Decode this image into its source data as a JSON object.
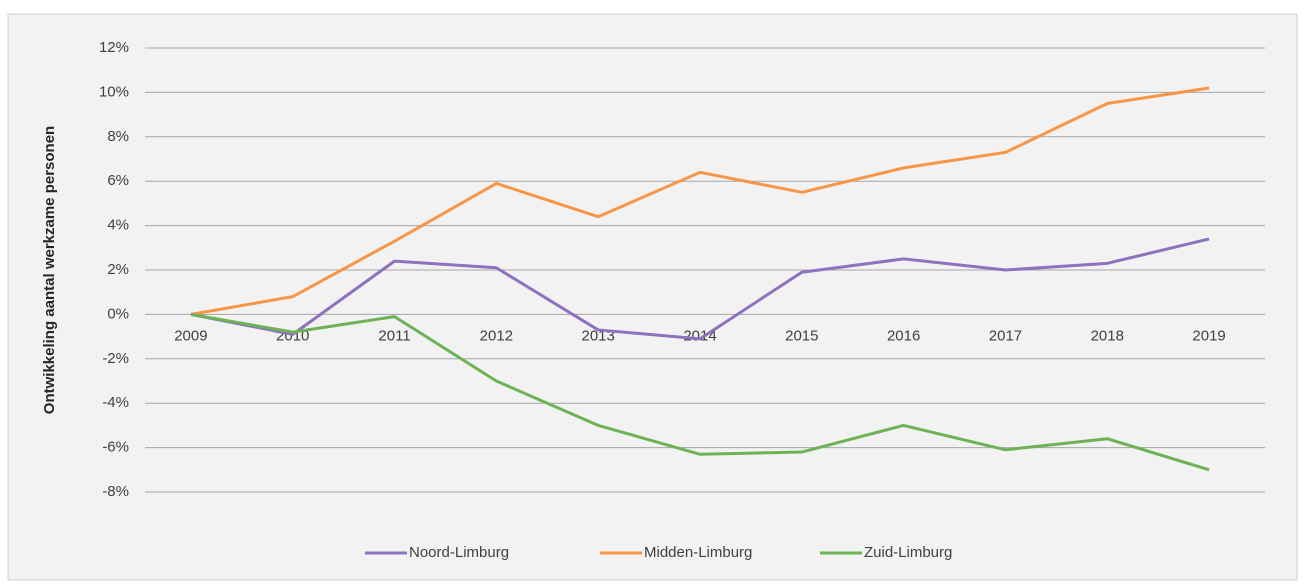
{
  "chart_data": {
    "type": "line",
    "y_label": "Ontwikkeling aantal werkzame personen",
    "categories": [
      "2009",
      "2010",
      "2011",
      "2012",
      "2013",
      "2014",
      "2015",
      "2016",
      "2017",
      "2018",
      "2019"
    ],
    "series": [
      {
        "name": "Noord-Limburg",
        "color": "#8e72bd",
        "values": [
          0,
          -0.9,
          2.4,
          2.1,
          -0.7,
          -1.1,
          1.9,
          2.5,
          2.0,
          2.3,
          3.4
        ]
      },
      {
        "name": "Midden-Limburg",
        "color": "#f79646",
        "values": [
          0,
          0.8,
          3.3,
          5.9,
          4.4,
          6.4,
          5.5,
          6.6,
          7.3,
          9.5,
          10.2
        ]
      },
      {
        "name": "Zuid-Limburg",
        "color": "#6db356",
        "values": [
          0,
          -0.8,
          -0.1,
          -3.0,
          -5.0,
          -6.3,
          -6.2,
          -5.0,
          -6.1,
          -5.6,
          -7.0
        ]
      }
    ],
    "ylim": [
      -8,
      12
    ],
    "yticks": [
      {
        "value": -8,
        "label": "-8%"
      },
      {
        "value": -6,
        "label": "-6%"
      },
      {
        "value": -4,
        "label": "-4%"
      },
      {
        "value": -2,
        "label": "-2%"
      },
      {
        "value": 0,
        "label": "0%"
      },
      {
        "value": 2,
        "label": "2%"
      },
      {
        "value": 4,
        "label": "4%"
      },
      {
        "value": 6,
        "label": "6%"
      },
      {
        "value": 8,
        "label": "8%"
      },
      {
        "value": 10,
        "label": "10%"
      },
      {
        "value": 12,
        "label": "12%"
      }
    ],
    "grid": true,
    "legend": "bottom"
  }
}
